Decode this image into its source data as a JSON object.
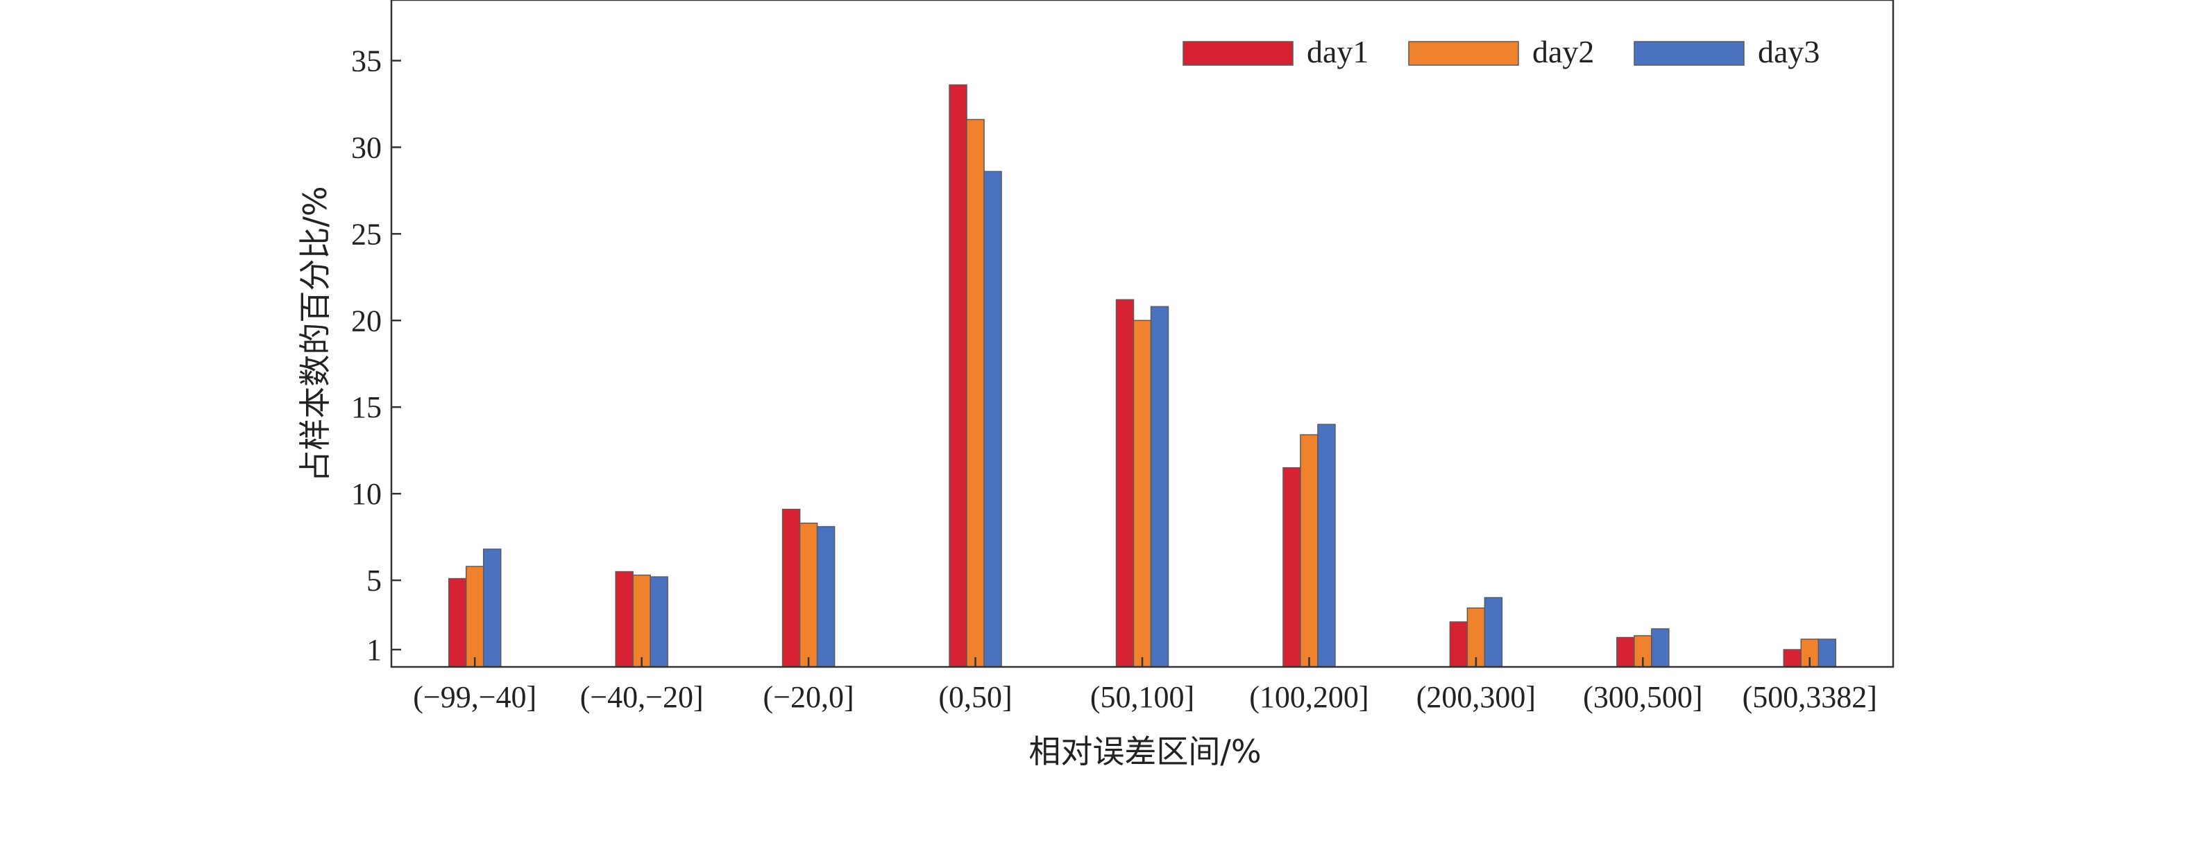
{
  "chart_data": {
    "type": "bar",
    "title": "",
    "xlabel": "相对误差区间/%",
    "ylabel": "占样本数的百分比/%",
    "categories": [
      "(−99,−40]",
      "(−40,−20]",
      "(−20,0]",
      "(0,50]",
      "(50,100]",
      "(100,200]",
      "(200,300]",
      "(300,500]",
      "(500,3382]"
    ],
    "series": [
      {
        "name": "day1",
        "color": "#d62232",
        "values": [
          5.1,
          5.5,
          9.1,
          33.6,
          21.2,
          11.5,
          2.6,
          1.7,
          1.0
        ]
      },
      {
        "name": "day2",
        "color": "#f0822d",
        "values": [
          5.8,
          5.3,
          8.3,
          31.6,
          20.0,
          13.4,
          3.4,
          1.8,
          1.6
        ]
      },
      {
        "name": "day3",
        "color": "#4a72c0",
        "values": [
          6.8,
          5.2,
          8.1,
          28.6,
          20.8,
          14.0,
          4.0,
          2.2,
          1.6
        ]
      }
    ],
    "yticks": [
      1,
      5,
      10,
      15,
      20,
      25,
      30,
      35
    ],
    "ylim": [
      0,
      38.5
    ],
    "legend_position": "top-right",
    "grid": false
  }
}
